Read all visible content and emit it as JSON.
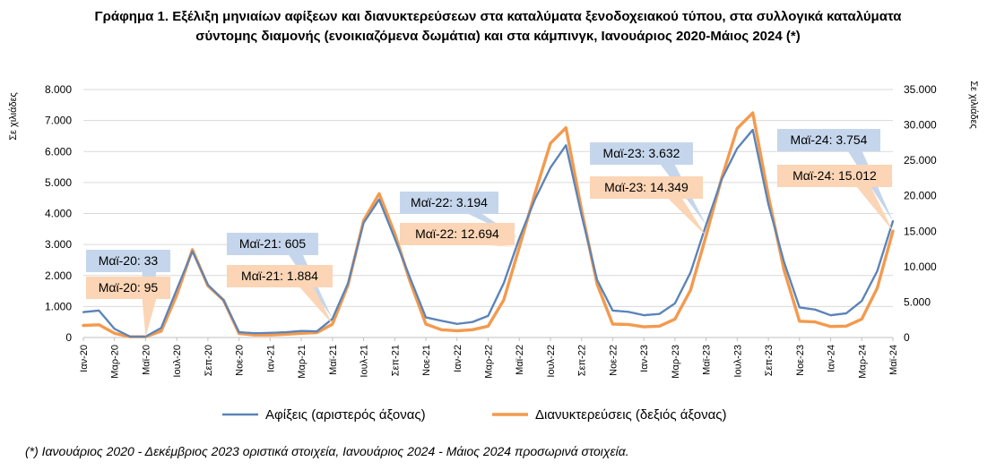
{
  "title_line1": "Γράφημα 1. Εξέλιξη μηνιαίων αφίξεων και διανυκτερεύσεων στα καταλύματα ξενοδοχειακού τύπου, στα συλλογικά καταλύματα",
  "title_line2": "σύντομης διαμονής (ενοικιαζόμενα δωμάτια) και στα κάμπινγκ, Ιανουάριος 2020-Μάιος 2024 (*)",
  "footnote": "(*) Ιανουάριος 2020 - Δεκέμβριος 2023 οριστικά στοιχεία, Ιανουάριος 2024 - Μάιος 2024 προσωρινά στοιχεία.",
  "colors": {
    "arrivals": "#5b84b8",
    "overnight": "#f39a4e",
    "callout_blue": "#c5d6ec",
    "callout_orange": "#fbd5b5",
    "grid": "#d9d9d9"
  },
  "chart_data": {
    "type": "line",
    "ylabel_left": "Σε χιλιάδες",
    "ylabel_right": "Σε χιλιάδες",
    "ylim_left": [
      0,
      8000
    ],
    "ylim_right": [
      0,
      35000
    ],
    "yticks_left": [
      "0",
      "1.000",
      "2.000",
      "3.000",
      "4.000",
      "5.000",
      "6.000",
      "7.000",
      "8.000"
    ],
    "yticks_right": [
      "0",
      "5.000",
      "10.000",
      "15.000",
      "20.000",
      "25.000",
      "30.000",
      "35.000"
    ],
    "x": [
      "Ιαν-20",
      "Φεβ-20",
      "Μαρ-20",
      "Απρ-20",
      "Μαϊ-20",
      "Ιουν-20",
      "Ιουλ-20",
      "Αυγ-20",
      "Σεπ-20",
      "Οκτ-20",
      "Νοε-20",
      "Δεκ-20",
      "Ιαν-21",
      "Φεβ-21",
      "Μαρ-21",
      "Απρ-21",
      "Μαϊ-21",
      "Ιουν-21",
      "Ιουλ-21",
      "Αυγ-21",
      "Σεπ-21",
      "Οκτ-21",
      "Νοε-21",
      "Δεκ-21",
      "Ιαν-22",
      "Φεβ-22",
      "Μαρ-22",
      "Απρ-22",
      "Μαϊ-22",
      "Ιουν-22",
      "Ιουλ-22",
      "Αυγ-22",
      "Σεπ-22",
      "Οκτ-22",
      "Νοε-22",
      "Δεκ-22",
      "Ιαν-23",
      "Φεβ-23",
      "Μαρ-23",
      "Απρ-23",
      "Μαϊ-23",
      "Ιουν-23",
      "Ιουλ-23",
      "Αυγ-23",
      "Σεπ-23",
      "Οκτ-23",
      "Νοε-23",
      "Δεκ-23",
      "Ιαν-24",
      "Φεβ-24",
      "Μαρ-24",
      "Απρ-24",
      "Μαϊ-24"
    ],
    "xtick_labels": [
      "Ιαν-20",
      "Μαρ-20",
      "Μαϊ-20",
      "Ιουλ-20",
      "Σεπ-20",
      "Νοε-20",
      "Ιαν-21",
      "Μαρ-21",
      "Μαϊ-21",
      "Ιουλ-21",
      "Σεπ-21",
      "Νοε-21",
      "Ιαν-22",
      "Μαρ-22",
      "Μαϊ-22",
      "Ιουλ-22",
      "Σεπ-22",
      "Νοε-22",
      "Ιαν-23",
      "Μαρ-23",
      "Μαϊ-23",
      "Ιουλ-23",
      "Σεπ-23",
      "Νοε-23",
      "Ιαν-24",
      "Μαρ-24",
      "Μαϊ-24"
    ],
    "series": [
      {
        "name": "Αφίξεις (αριστερός άξονας)",
        "axis": "left",
        "values": [
          820,
          870,
          280,
          30,
          33,
          310,
          1550,
          2780,
          1700,
          1200,
          170,
          140,
          150,
          170,
          210,
          200,
          605,
          1750,
          3700,
          4450,
          3200,
          1900,
          650,
          540,
          440,
          500,
          700,
          1750,
          3194,
          4450,
          5480,
          6200,
          3950,
          1850,
          870,
          830,
          720,
          760,
          1100,
          2100,
          3632,
          5100,
          6100,
          6700,
          4300,
          2450,
          970,
          900,
          720,
          780,
          1180,
          2150,
          3754
        ]
      },
      {
        "name": "Διανυκτερεύσεις (δεξιός άξονας)",
        "axis": "right",
        "values": [
          1700,
          1800,
          600,
          100,
          95,
          900,
          6000,
          12400,
          7300,
          5300,
          550,
          350,
          350,
          450,
          600,
          700,
          1884,
          7400,
          16500,
          20300,
          14700,
          7800,
          1900,
          1100,
          950,
          1100,
          1600,
          5300,
          12694,
          20300,
          27400,
          29600,
          18000,
          7500,
          1900,
          1850,
          1500,
          1600,
          2600,
          6700,
          14349,
          22500,
          29500,
          31700,
          20000,
          9600,
          2300,
          2200,
          1550,
          1600,
          2600,
          7000,
          15012
        ]
      }
    ],
    "annotations": [
      {
        "label": "Μαϊ-20: 33",
        "series": 0,
        "index": 4
      },
      {
        "label": "Μαϊ-20: 95",
        "series": 1,
        "index": 4
      },
      {
        "label": "Μαϊ-21: 605",
        "series": 0,
        "index": 16
      },
      {
        "label": "Μαϊ-21: 1.884",
        "series": 1,
        "index": 16
      },
      {
        "label": "Μαϊ-22: 3.194",
        "series": 0,
        "index": 28
      },
      {
        "label": "Μαϊ-22: 12.694",
        "series": 1,
        "index": 28
      },
      {
        "label": "Μαϊ-23: 3.632",
        "series": 0,
        "index": 40
      },
      {
        "label": "Μαϊ-23: 14.349",
        "series": 1,
        "index": 40
      },
      {
        "label": "Μαϊ-24: 3.754",
        "series": 0,
        "index": 52
      },
      {
        "label": "Μαϊ-24: 15.012",
        "series": 1,
        "index": 52
      }
    ],
    "legend_position": "bottom"
  }
}
